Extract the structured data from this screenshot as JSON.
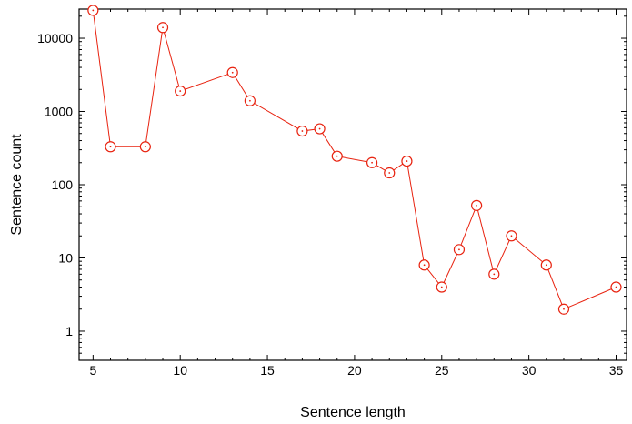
{
  "chart_data": {
    "type": "line",
    "title": "",
    "xlabel": "Sentence length",
    "ylabel": "Sentence count",
    "xlim": [
      4.2,
      35.6
    ],
    "ylim": [
      0.4,
      25000
    ],
    "yscale": "log",
    "grid": false,
    "legend": "none",
    "line_color": "#e8220f",
    "x_ticks": [
      5,
      10,
      15,
      20,
      25,
      30,
      35
    ],
    "x_tick_labels": [
      "5",
      "10",
      "15",
      "20",
      "25",
      "30",
      "35"
    ],
    "y_ticks": [
      1,
      10,
      100,
      1000,
      10000
    ],
    "y_tick_labels": [
      "1",
      "10",
      "100",
      "1000",
      "10000"
    ],
    "series": [
      {
        "x": [
          5,
          6,
          8,
          9,
          10,
          13,
          14,
          17,
          18,
          19,
          21,
          22,
          23,
          24,
          25,
          26,
          27,
          28,
          29,
          31,
          32,
          35
        ],
        "y": [
          24000,
          330,
          330,
          14000,
          1900,
          3400,
          1400,
          540,
          580,
          245,
          200,
          145,
          210,
          8,
          4,
          13,
          52,
          6,
          20,
          8,
          2,
          4
        ]
      }
    ]
  }
}
